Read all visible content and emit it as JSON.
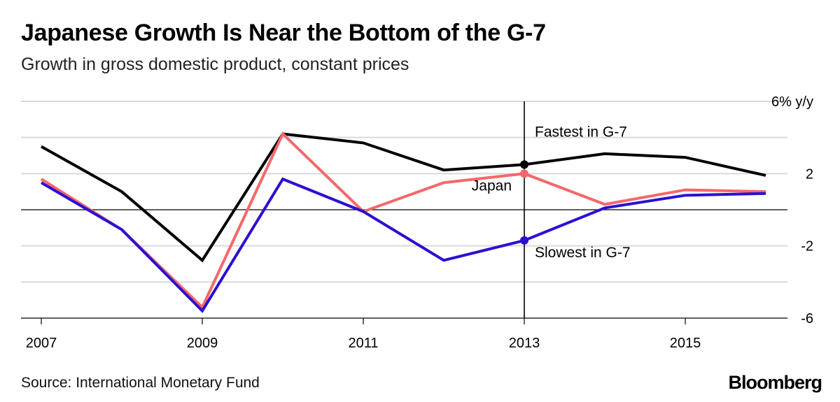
{
  "header": {
    "title": "Japanese Growth Is Near the Bottom of the G-7",
    "subtitle": "Growth in gross domestic product, constant prices"
  },
  "footer": {
    "source": "Source: International Monetary Fund",
    "brand": "Bloomberg"
  },
  "chart_data": {
    "type": "line",
    "title": "Japanese Growth Is Near the Bottom of the G-7",
    "subtitle": "Growth in gross domestic product, constant prices",
    "xlabel": "",
    "ylabel": "",
    "x": [
      2007,
      2008,
      2009,
      2010,
      2011,
      2012,
      2013,
      2014,
      2015,
      2016
    ],
    "xticks": [
      "2007",
      "2009",
      "2011",
      "2013",
      "2015"
    ],
    "yticks": [
      {
        "value": 6,
        "label": "6% y/y"
      },
      {
        "value": 2,
        "label": "2"
      },
      {
        "value": -2,
        "label": "-2"
      },
      {
        "value": -6,
        "label": "-6"
      }
    ],
    "ylim": [
      -6,
      6
    ],
    "grid": true,
    "highlight_year": 2013,
    "series": [
      {
        "name": "Fastest in G-7",
        "color": "#000000",
        "values": [
          3.5,
          1.0,
          -2.8,
          4.2,
          3.7,
          2.2,
          2.5,
          3.1,
          2.9,
          1.9
        ]
      },
      {
        "name": "Japan",
        "color": "#f4686b",
        "values": [
          1.7,
          -1.1,
          -5.4,
          4.2,
          -0.1,
          1.5,
          2.0,
          0.3,
          1.1,
          1.0
        ]
      },
      {
        "name": "Slowest in G-7",
        "color": "#2a10d3",
        "values": [
          1.5,
          -1.1,
          -5.6,
          1.7,
          -0.1,
          -2.8,
          -1.7,
          0.1,
          0.8,
          0.9
        ]
      }
    ]
  }
}
